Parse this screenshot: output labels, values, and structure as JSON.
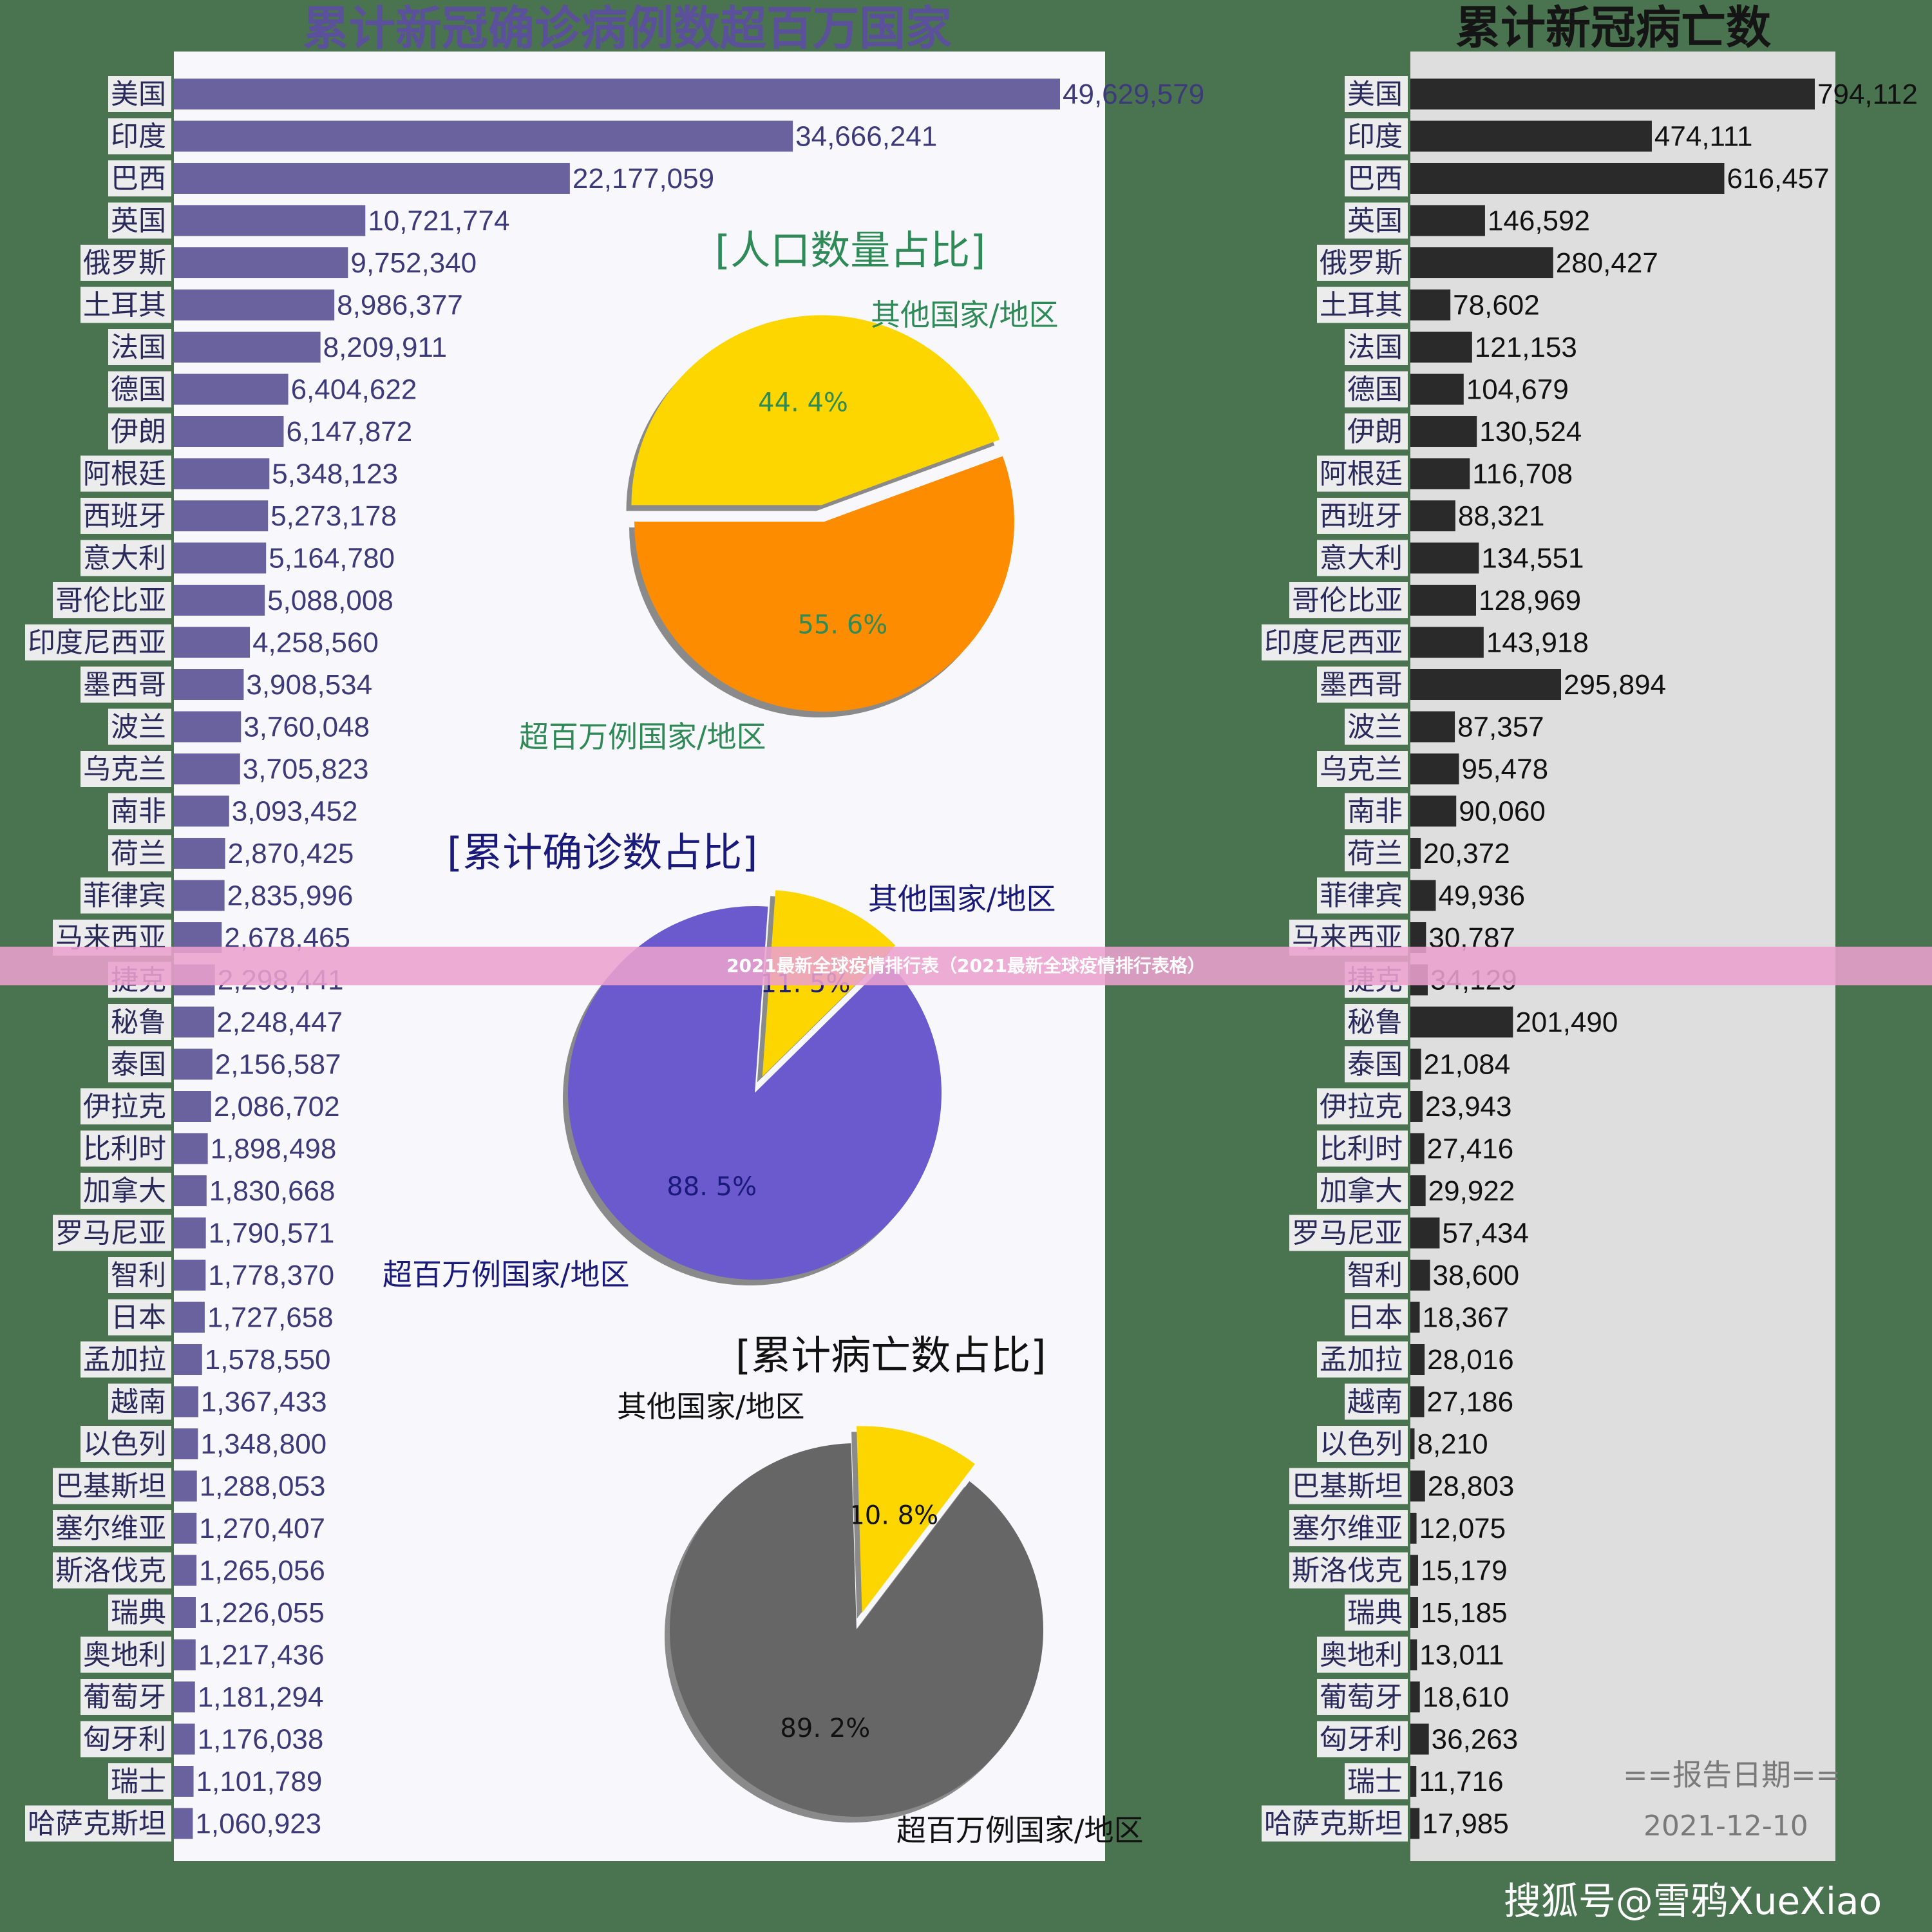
{
  "chart_data": [
    {
      "type": "bar",
      "title": "累计新冠确诊病例数超百万国家",
      "orientation": "horizontal",
      "categories": [
        "美国",
        "印度",
        "巴西",
        "英国",
        "俄罗斯",
        "土耳其",
        "法国",
        "德国",
        "伊朗",
        "阿根廷",
        "西班牙",
        "意大利",
        "哥伦比亚",
        "印度尼西亚",
        "墨西哥",
        "波兰",
        "乌克兰",
        "南非",
        "荷兰",
        "菲律宾",
        "马来西亚",
        "捷克",
        "秘鲁",
        "泰国",
        "伊拉克",
        "比利时",
        "加拿大",
        "罗马尼亚",
        "智利",
        "日本",
        "孟加拉",
        "越南",
        "以色列",
        "巴基斯坦",
        "塞尔维亚",
        "斯洛伐克",
        "瑞典",
        "奥地利",
        "葡萄牙",
        "匈牙利",
        "瑞士",
        "哈萨克斯坦"
      ],
      "values": [
        49629579,
        34666241,
        22177059,
        10721774,
        9752340,
        8986377,
        8209911,
        6404622,
        6147872,
        5348123,
        5273178,
        5164780,
        5088008,
        4258560,
        3908534,
        3760048,
        3705823,
        3093452,
        2870425,
        2835996,
        2678465,
        2298441,
        2248447,
        2156587,
        2086702,
        1898498,
        1830668,
        1790571,
        1778370,
        1727658,
        1578550,
        1367433,
        1348800,
        1288053,
        1270407,
        1265056,
        1226055,
        1217436,
        1181294,
        1176038,
        1101789,
        1060923
      ],
      "data_labels": [
        "49,629,579",
        "34,666,241",
        "22,177,059",
        "10,721,774",
        "9,752,340",
        "8,986,377",
        "8,209,911",
        "6,404,622",
        "6,147,872",
        "5,348,123",
        "5,273,178",
        "5,164,780",
        "5,088,008",
        "4,258,560",
        "3,908,534",
        "3,760,048",
        "3,705,823",
        "3,093,452",
        "2,870,425",
        "2,835,996",
        "2,678,465",
        "2,298,441",
        "2,248,447",
        "2,156,587",
        "2,086,702",
        "1,898,498",
        "1,830,668",
        "1,790,571",
        "1,778,370",
        "1,727,658",
        "1,578,550",
        "1,367,433",
        "1,348,800",
        "1,288,053",
        "1,270,407",
        "1,265,056",
        "1,226,055",
        "1,217,436",
        "1,181,294",
        "1,176,038",
        "1,101,789",
        "1,060,923"
      ],
      "color": "#6a619f"
    },
    {
      "type": "bar",
      "title": "累计新冠病亡数",
      "orientation": "horizontal",
      "categories": [
        "美国",
        "印度",
        "巴西",
        "英国",
        "俄罗斯",
        "土耳其",
        "法国",
        "德国",
        "伊朗",
        "阿根廷",
        "西班牙",
        "意大利",
        "哥伦比亚",
        "印度尼西亚",
        "墨西哥",
        "波兰",
        "乌克兰",
        "南非",
        "荷兰",
        "菲律宾",
        "马来西亚",
        "捷克",
        "秘鲁",
        "泰国",
        "伊拉克",
        "比利时",
        "加拿大",
        "罗马尼亚",
        "智利",
        "日本",
        "孟加拉",
        "越南",
        "以色列",
        "巴基斯坦",
        "塞尔维亚",
        "斯洛伐克",
        "瑞典",
        "奥地利",
        "葡萄牙",
        "匈牙利",
        "瑞士",
        "哈萨克斯坦"
      ],
      "values": [
        794112,
        474111,
        616457,
        146592,
        280427,
        78602,
        121153,
        104679,
        130524,
        116708,
        88321,
        134551,
        128969,
        143918,
        295894,
        87357,
        95478,
        90060,
        20372,
        49936,
        30787,
        34129,
        201490,
        21084,
        23943,
        27416,
        29922,
        57434,
        38600,
        18367,
        28016,
        27186,
        8210,
        28803,
        12075,
        15179,
        15185,
        13011,
        18610,
        36263,
        11716,
        17985
      ],
      "data_labels": [
        "794,112",
        "474,111",
        "616,457",
        "146,592",
        "280,427",
        "78,602",
        "121,153",
        "104,679",
        "130,524",
        "116,708",
        "88,321",
        "134,551",
        "128,969",
        "143,918",
        "295,894",
        "87,357",
        "95,478",
        "90,060",
        "20,372",
        "49,936",
        "30,787",
        "34,129",
        "201,490",
        "21,084",
        "23,943",
        "27,416",
        "29,922",
        "57,434",
        "38,600",
        "18,367",
        "28,016",
        "27,186",
        "8,210",
        "28,803",
        "12,075",
        "15,179",
        "15,185",
        "13,011",
        "18,610",
        "36,263",
        "11,716",
        "17,985"
      ],
      "color": "#2a2a2a"
    },
    {
      "type": "pie",
      "title": "[人口数量占比]",
      "slices": [
        {
          "label": "其他国家/地区",
          "value": 44.4,
          "pct_label": "44. 4%",
          "color": "#fdd600"
        },
        {
          "label": "超百万例国家/地区",
          "value": 55.6,
          "pct_label": "55. 6%",
          "color": "#fe8c00"
        }
      ],
      "text_color": "#2e8b57"
    },
    {
      "type": "pie",
      "title": "[累计确诊数占比]",
      "slices": [
        {
          "label": "其他国家/地区",
          "value": 11.5,
          "pct_label": "11. 5%",
          "color": "#fdd600"
        },
        {
          "label": "超百万例国家/地区",
          "value": 88.5,
          "pct_label": "88. 5%",
          "color": "#6a5acd"
        }
      ],
      "text_color": "#1a1a7a"
    },
    {
      "type": "pie",
      "title": "[累计病亡数占比]",
      "slices": [
        {
          "label": "其他国家/地区",
          "value": 10.8,
          "pct_label": "10. 8%",
          "color": "#fdd600"
        },
        {
          "label": "超百万例国家/地区",
          "value": 89.2,
          "pct_label": "89. 2%",
          "color": "#666666"
        }
      ],
      "text_color": "#111111"
    }
  ],
  "banner": "2021最新全球疫情排行表（2021最新全球疫情排行表格）",
  "report": {
    "label": "==报告日期==",
    "date": "2021-12-10"
  },
  "watermark": "搜狐号@雪鸦XueXiao"
}
